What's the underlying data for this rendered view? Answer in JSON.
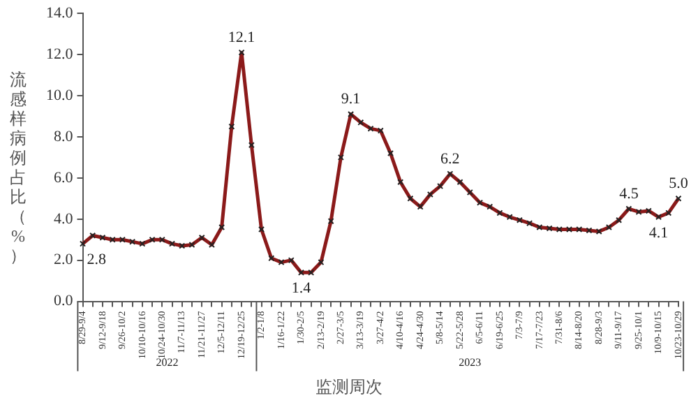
{
  "chart_data": {
    "type": "line",
    "xlabel": "监测周次",
    "ylabel": "流感样病例占比（%）",
    "annotations": [
      "2022",
      "2023"
    ],
    "categories": [
      "8/29-9/4",
      null,
      "9/12-9/18",
      null,
      "9/26-10/2",
      null,
      "10/10-10/16",
      null,
      "10/24-10/30",
      null,
      "11/7-11/13",
      null,
      "11/21-11/27",
      null,
      "12/5-12/11",
      null,
      "12/19-12/25",
      null,
      "1/2-1/8",
      null,
      "1/16-1/22",
      null,
      "1/30-2/5",
      null,
      "2/13-2/19",
      null,
      "2/27-3/5",
      null,
      "3/13-3/19",
      null,
      "3/27-4/2",
      null,
      "4/10-4/16",
      null,
      "4/24-4/30",
      null,
      "5/8-5/14",
      null,
      "5/22-5/28",
      null,
      "6/5-6/11",
      null,
      "6/19-6/25",
      null,
      "7/3-7/9",
      null,
      "7/17-7/23",
      null,
      "7/31-8/6",
      null,
      "8/14-8/20",
      null,
      "8/28-9/3",
      null,
      "9/11-9/17",
      null,
      "9/25-10/1",
      null,
      "10/9-10/15",
      null,
      "10/23-10/29"
    ],
    "series": [
      {
        "color": "#8b1a1a",
        "values": [
          2.8,
          3.2,
          3.1,
          3.0,
          3.0,
          2.9,
          2.8,
          3.0,
          3.0,
          2.8,
          2.7,
          2.75,
          3.1,
          2.75,
          3.6,
          8.5,
          12.1,
          7.6,
          3.5,
          2.1,
          1.9,
          2.0,
          1.4,
          1.4,
          1.9,
          3.9,
          7.0,
          9.1,
          8.7,
          8.4,
          8.3,
          7.2,
          5.8,
          5.0,
          4.6,
          5.2,
          5.6,
          6.2,
          5.8,
          5.3,
          4.8,
          4.6,
          4.3,
          4.1,
          3.95,
          3.8,
          3.6,
          3.55,
          3.5,
          3.5,
          3.5,
          3.45,
          3.4,
          3.6,
          3.95,
          4.5,
          4.35,
          4.4,
          4.1,
          4.3,
          5.0
        ],
        "value_labels": [
          "2.8",
          null,
          null,
          null,
          null,
          null,
          null,
          null,
          null,
          null,
          null,
          null,
          null,
          null,
          null,
          null,
          "12.1",
          null,
          null,
          null,
          null,
          null,
          "1.4",
          null,
          null,
          null,
          null,
          "9.1",
          null,
          null,
          null,
          null,
          null,
          null,
          null,
          null,
          null,
          "6.2",
          null,
          null,
          null,
          null,
          null,
          null,
          null,
          null,
          null,
          null,
          null,
          null,
          null,
          null,
          null,
          null,
          null,
          "4.5",
          null,
          null,
          "4.1",
          null,
          "5.0"
        ]
      }
    ],
    "ylim": [
      0,
      14
    ],
    "yticks": [
      {
        "value": 0,
        "label": "0.0"
      },
      {
        "value": 2,
        "label": "2.0"
      },
      {
        "value": 4,
        "label": "4.0"
      },
      {
        "value": 6,
        "label": "6.0"
      },
      {
        "value": 8,
        "label": "8.0"
      },
      {
        "value": 10,
        "label": "10.0"
      },
      {
        "value": 12,
        "label": "12.0"
      },
      {
        "value": 14,
        "label": "14.0"
      }
    ],
    "marker": "cross",
    "line_style": "solid"
  }
}
